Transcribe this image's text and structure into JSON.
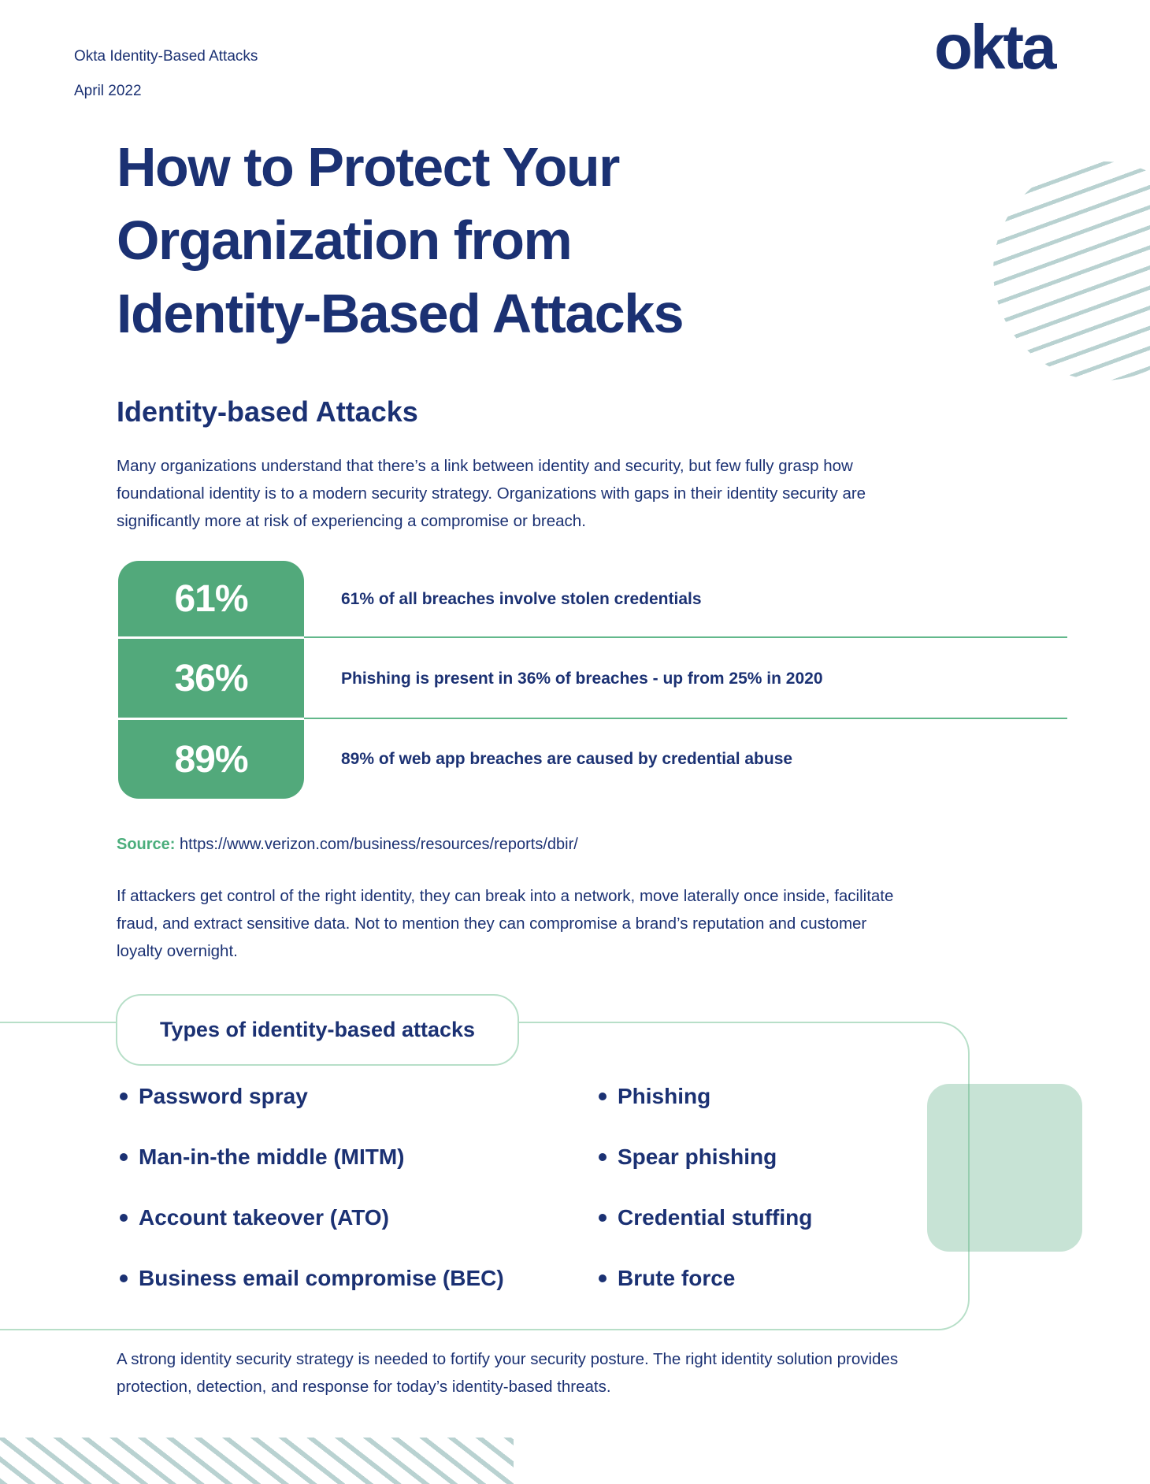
{
  "header": {
    "doc_title": "Okta Identity-Based Attacks",
    "doc_date": "April 2022",
    "logo_text": "okta"
  },
  "title": {
    "line1": "How to Protect Your",
    "line2": "Organization from",
    "line3": "Identity-Based Attacks"
  },
  "intro": {
    "heading": "Identity-based Attacks",
    "body": "Many organizations understand that there’s a link between identity and security, but few fully grasp how foundational identity is to a modern security strategy. Organizations with gaps in their identity security are significantly more at risk of experiencing a compromise or breach."
  },
  "stats": {
    "rows": [
      {
        "value": "61%",
        "label": "61% of all breaches involve stolen credentials"
      },
      {
        "value": "36%",
        "label": "Phishing is present in 36% of breaches - up from 25% in 2020"
      },
      {
        "value": "89%",
        "label": "89% of web app breaches are caused by credential abuse"
      }
    ],
    "source_label": "Source:",
    "source_url": "https://www.verizon.com/business/resources/reports/dbir/"
  },
  "paragraphs": {
    "attack": "If attackers get control of the right identity, they can break into a network, move laterally once inside, facilitate fraud, and extract sensitive data. Not to mention they can compromise a brand’s reputation and customer loyalty overnight.",
    "closing": "A strong identity security strategy is needed to fortify your security posture. The right identity solution provides protection, detection, and response for today’s identity-based threats."
  },
  "types_box": {
    "title": "Types of identity-based attacks",
    "left_items": [
      "Password spray",
      "Man-in-the middle (MITM)",
      "Account takeover (ATO)",
      "Business email compromise (BEC)"
    ],
    "right_items": [
      "Phishing",
      "Spear phishing",
      "Credential stuffing",
      "Brute force"
    ]
  },
  "colors": {
    "navy": "#1b3173",
    "green": "#52a97b",
    "mint_border": "#b7dfc8",
    "mint_fill": "#bfe5d2",
    "stripe_teal": "#b9d2d1",
    "divider_green": "#62b88b"
  }
}
